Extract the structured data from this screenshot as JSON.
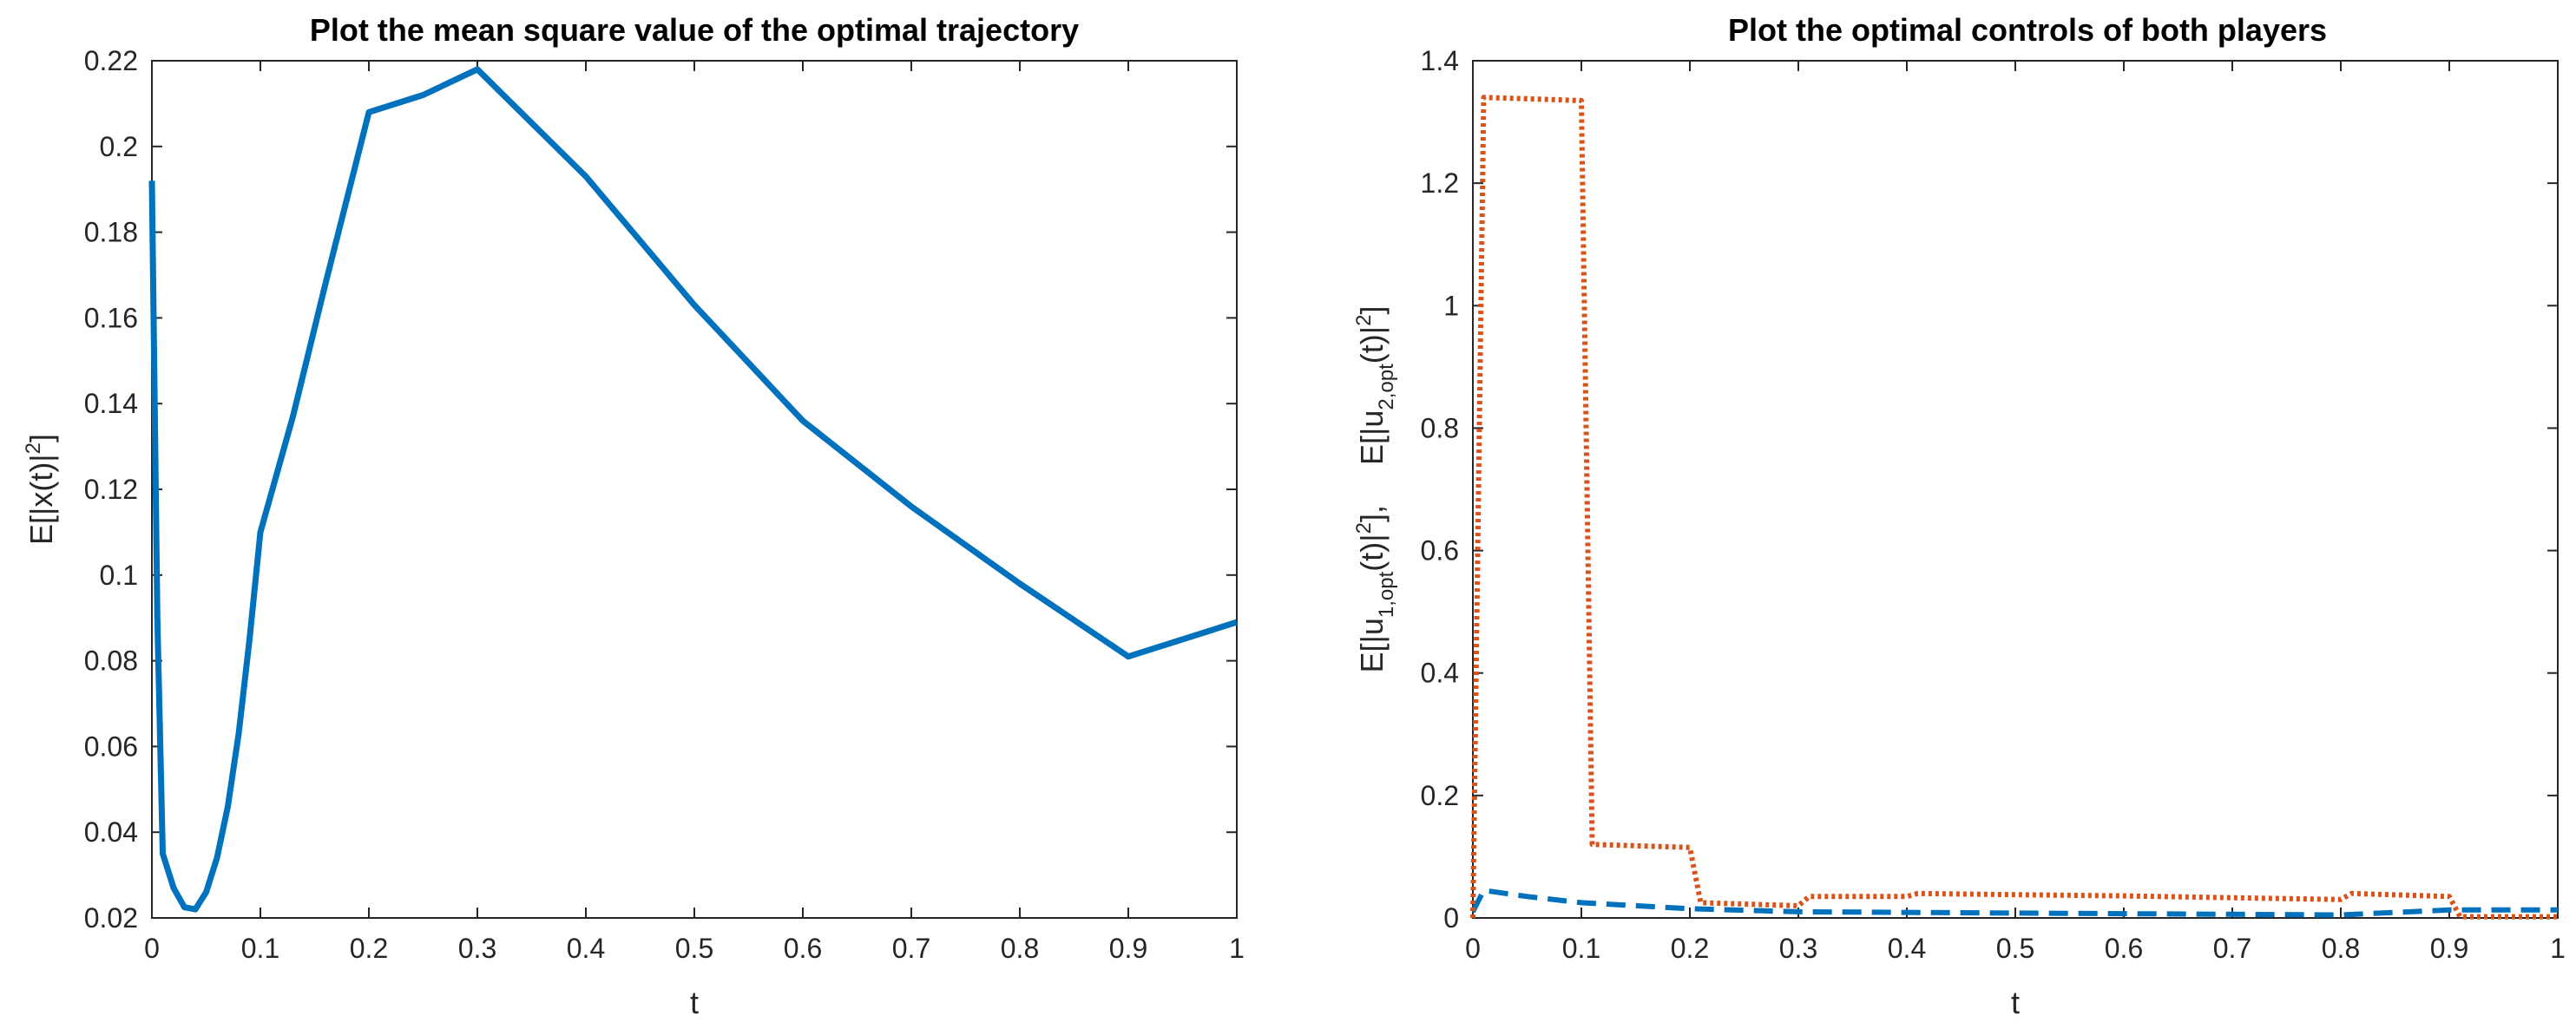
{
  "colors": {
    "blue": "#0072BD",
    "orange": "#D95319",
    "axis": "#262626"
  },
  "chart_data": [
    {
      "type": "line",
      "title": "Plot the mean square value of the optimal trajectory",
      "xlabel": "t",
      "ylabel": "E[|x(t)|2]",
      "xlim": [
        0,
        1
      ],
      "ylim": [
        0.02,
        0.22
      ],
      "xticks": [
        0,
        0.1,
        0.2,
        0.3,
        0.4,
        0.5,
        0.6,
        0.7,
        0.8,
        0.9,
        1
      ],
      "xtick_labels": [
        "0",
        "0.1",
        "0.2",
        "0.3",
        "0.4",
        "0.5",
        "0.6",
        "0.7",
        "0.8",
        "0.9",
        "1"
      ],
      "yticks": [
        0.02,
        0.04,
        0.06,
        0.08,
        0.1,
        0.12,
        0.14,
        0.16,
        0.18,
        0.2,
        0.22
      ],
      "ytick_labels": [
        "0.02",
        "0.04",
        "0.06",
        "0.08",
        "0.1",
        "0.12",
        "0.14",
        "0.16",
        "0.18",
        "0.2",
        "0.22"
      ],
      "series": [
        {
          "name": "E[|x(t)|^2]",
          "color": "#0072BD",
          "style": "solid",
          "x": [
            0,
            0.005,
            0.01,
            0.02,
            0.03,
            0.04,
            0.05,
            0.06,
            0.07,
            0.08,
            0.09,
            0.1,
            0.13,
            0.16,
            0.2,
            0.25,
            0.3,
            0.4,
            0.5,
            0.6,
            0.7,
            0.8,
            0.9,
            1.0
          ],
          "values": [
            0.192,
            0.09,
            0.035,
            0.027,
            0.0225,
            0.022,
            0.026,
            0.034,
            0.046,
            0.063,
            0.085,
            0.11,
            0.137,
            0.168,
            0.208,
            0.212,
            0.218,
            0.193,
            0.163,
            0.136,
            0.116,
            0.098,
            0.081,
            0.089
          ]
        }
      ]
    },
    {
      "type": "line",
      "title": "Plot the optimal controls of both players",
      "xlabel": "t",
      "ylabel_parts": {
        "u1_prefix": "E[|u",
        "u1_sub": "1,opt",
        "u1_mid": "(t)|",
        "u1_sup": "2",
        "u1_suffix": "],",
        "u2_prefix": "E[|u",
        "u2_sub": "2,opt",
        "u2_mid": "(t)|",
        "u2_sup": "2",
        "u2_suffix": "]"
      },
      "xlim": [
        0,
        1
      ],
      "ylim": [
        0,
        1.4
      ],
      "xticks": [
        0,
        0.1,
        0.2,
        0.3,
        0.4,
        0.5,
        0.6,
        0.7,
        0.8,
        0.9,
        1
      ],
      "xtick_labels": [
        "0",
        "0.1",
        "0.2",
        "0.3",
        "0.4",
        "0.5",
        "0.6",
        "0.7",
        "0.8",
        "0.9",
        "1"
      ],
      "yticks": [
        0,
        0.2,
        0.4,
        0.6,
        0.8,
        1,
        1.2,
        1.4
      ],
      "ytick_labels": [
        "0",
        "0.2",
        "0.4",
        "0.6",
        "0.8",
        "1",
        "1.2",
        "1.4"
      ],
      "series": [
        {
          "name": "E[|u1,opt(t)|^2]",
          "color": "#0072BD",
          "style": "dashed",
          "x": [
            0,
            0.01,
            0.05,
            0.1,
            0.2,
            0.3,
            0.4,
            0.5,
            0.6,
            0.7,
            0.8,
            0.9,
            1.0
          ],
          "values": [
            0.01,
            0.045,
            0.035,
            0.025,
            0.015,
            0.01,
            0.009,
            0.008,
            0.007,
            0.006,
            0.005,
            0.013,
            0.013
          ]
        },
        {
          "name": "E[|u2,opt(t)|^2]",
          "color": "#D95319",
          "style": "dotted",
          "x": [
            0,
            0.01,
            0.1,
            0.11,
            0.2,
            0.21,
            0.3,
            0.31,
            0.4,
            0.41,
            0.5,
            0.6,
            0.7,
            0.8,
            0.81,
            0.9,
            0.91,
            1.0
          ],
          "values": [
            0,
            1.34,
            1.335,
            0.12,
            0.115,
            0.025,
            0.02,
            0.035,
            0.035,
            0.04,
            0.038,
            0.036,
            0.033,
            0.03,
            0.04,
            0.035,
            0.002,
            0.002
          ]
        }
      ]
    }
  ]
}
